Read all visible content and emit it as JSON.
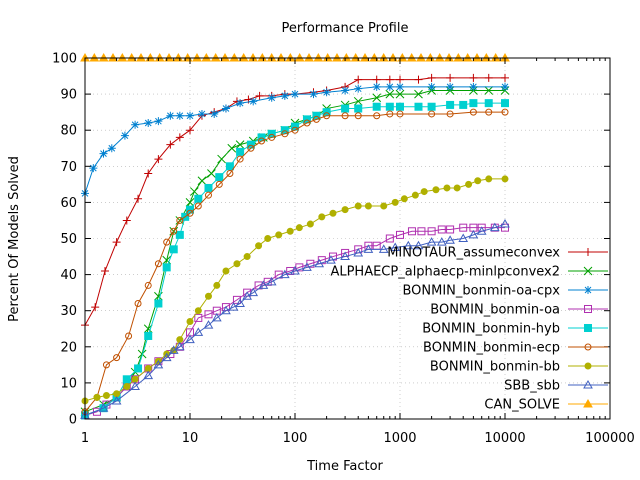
{
  "chart_data": {
    "type": "line",
    "title": "Performance Profile",
    "xlabel": "Time Factor",
    "ylabel": "Percent Of Models Solved",
    "x_scale": "log",
    "xlim": [
      1,
      100000
    ],
    "ylim": [
      0,
      100
    ],
    "x_ticks": [
      1,
      10,
      100,
      1000,
      10000,
      100000
    ],
    "x_tick_labels": [
      "1",
      "10",
      "100",
      "1000",
      "10000",
      "100000"
    ],
    "y_ticks": [
      0,
      10,
      20,
      30,
      40,
      50,
      60,
      70,
      80,
      90,
      100
    ],
    "y_tick_labels": [
      "0",
      "10",
      "20",
      "30",
      "40",
      "50",
      "60",
      "70",
      "80",
      "90",
      "100"
    ],
    "grid": true,
    "legend_position": "right",
    "series": [
      {
        "name": "MINOTAUR_assumeconvex",
        "color": "#c00000",
        "marker": "plus",
        "points": [
          [
            1,
            26
          ],
          [
            1.25,
            31
          ],
          [
            1.55,
            41
          ],
          [
            2,
            49
          ],
          [
            2.5,
            55
          ],
          [
            3.2,
            61
          ],
          [
            4,
            68
          ],
          [
            5,
            72
          ],
          [
            6.5,
            76
          ],
          [
            8,
            78
          ],
          [
            10,
            80
          ],
          [
            13,
            84
          ],
          [
            17,
            85
          ],
          [
            22,
            86
          ],
          [
            28,
            88
          ],
          [
            36,
            88.5
          ],
          [
            46,
            89.5
          ],
          [
            60,
            89.5
          ],
          [
            80,
            90
          ],
          [
            100,
            90
          ],
          [
            150,
            90.5
          ],
          [
            200,
            91
          ],
          [
            300,
            92
          ],
          [
            400,
            94
          ],
          [
            600,
            94
          ],
          [
            800,
            94
          ],
          [
            1000,
            94
          ],
          [
            1500,
            94
          ],
          [
            2000,
            94.5
          ],
          [
            3000,
            94.5
          ],
          [
            5000,
            94.5
          ],
          [
            7000,
            94.5
          ],
          [
            10000,
            94.5
          ]
        ]
      },
      {
        "name": "ALPHAECP_alphaecp-minlpconvex2",
        "color": "#00a000",
        "marker": "x",
        "points": [
          [
            1,
            2
          ],
          [
            1.5,
            4
          ],
          [
            2,
            6
          ],
          [
            2.5,
            9
          ],
          [
            3,
            13
          ],
          [
            3.5,
            18
          ],
          [
            4,
            25
          ],
          [
            5,
            34
          ],
          [
            6,
            44
          ],
          [
            7,
            52
          ],
          [
            8,
            55
          ],
          [
            10,
            60
          ],
          [
            11,
            63
          ],
          [
            13,
            66
          ],
          [
            16,
            68
          ],
          [
            20,
            72
          ],
          [
            25,
            75
          ],
          [
            30,
            76
          ],
          [
            40,
            77
          ],
          [
            50,
            78
          ],
          [
            60,
            79
          ],
          [
            80,
            80
          ],
          [
            100,
            82
          ],
          [
            130,
            83
          ],
          [
            160,
            84
          ],
          [
            200,
            86
          ],
          [
            300,
            87
          ],
          [
            400,
            88
          ],
          [
            600,
            89
          ],
          [
            800,
            90
          ],
          [
            1000,
            90
          ],
          [
            1500,
            90
          ],
          [
            2000,
            91
          ],
          [
            3000,
            91
          ],
          [
            5000,
            91
          ],
          [
            7000,
            91
          ],
          [
            10000,
            91
          ]
        ]
      },
      {
        "name": "BONMIN_bonmin-oa-cpx",
        "color": "#0080d0",
        "marker": "star",
        "points": [
          [
            1,
            62.5
          ],
          [
            1.2,
            69.5
          ],
          [
            1.5,
            73.5
          ],
          [
            1.8,
            75
          ],
          [
            2.4,
            78.5
          ],
          [
            3,
            81.5
          ],
          [
            4,
            82
          ],
          [
            5,
            82.5
          ],
          [
            6.5,
            84
          ],
          [
            8,
            84
          ],
          [
            10,
            84
          ],
          [
            13,
            84.5
          ],
          [
            17,
            84.5
          ],
          [
            22,
            86
          ],
          [
            30,
            87.5
          ],
          [
            40,
            88
          ],
          [
            60,
            89
          ],
          [
            80,
            89.5
          ],
          [
            100,
            90
          ],
          [
            150,
            90
          ],
          [
            200,
            90.5
          ],
          [
            300,
            91
          ],
          [
            400,
            91.5
          ],
          [
            600,
            92
          ],
          [
            800,
            92
          ],
          [
            1000,
            92
          ],
          [
            2000,
            92
          ],
          [
            3000,
            92
          ],
          [
            5000,
            92
          ],
          [
            10000,
            92
          ]
        ]
      },
      {
        "name": "BONMIN_bonmin-oa",
        "color": "#b030b0",
        "marker": "square",
        "points": [
          [
            1,
            1
          ],
          [
            1.3,
            2
          ],
          [
            1.6,
            4
          ],
          [
            2,
            6
          ],
          [
            2.5,
            9
          ],
          [
            3,
            11
          ],
          [
            4,
            14
          ],
          [
            5,
            16
          ],
          [
            6.5,
            18
          ],
          [
            8,
            20
          ],
          [
            10,
            24
          ],
          [
            12,
            28
          ],
          [
            15,
            29
          ],
          [
            18,
            30
          ],
          [
            22,
            31
          ],
          [
            28,
            33
          ],
          [
            35,
            35
          ],
          [
            45,
            37
          ],
          [
            55,
            38
          ],
          [
            70,
            40
          ],
          [
            90,
            41
          ],
          [
            110,
            42
          ],
          [
            140,
            43
          ],
          [
            180,
            44
          ],
          [
            230,
            45
          ],
          [
            300,
            46
          ],
          [
            400,
            47
          ],
          [
            500,
            48
          ],
          [
            600,
            48
          ],
          [
            800,
            50
          ],
          [
            1000,
            51
          ],
          [
            1300,
            52
          ],
          [
            1600,
            52
          ],
          [
            2000,
            52
          ],
          [
            2500,
            52.5
          ],
          [
            3000,
            52.5
          ],
          [
            4000,
            53
          ],
          [
            5000,
            53
          ],
          [
            6000,
            53
          ],
          [
            8000,
            53
          ],
          [
            10000,
            53
          ]
        ]
      },
      {
        "name": "BONMIN_bonmin-hyb",
        "color": "#00d0d0",
        "marker": "filled-square",
        "points": [
          [
            1,
            1
          ],
          [
            1.5,
            3
          ],
          [
            2,
            6
          ],
          [
            2.5,
            11
          ],
          [
            3.2,
            14
          ],
          [
            4,
            23
          ],
          [
            5,
            32
          ],
          [
            6,
            42
          ],
          [
            7,
            47
          ],
          [
            8,
            51
          ],
          [
            9,
            56
          ],
          [
            10,
            58
          ],
          [
            12,
            61
          ],
          [
            15,
            64
          ],
          [
            19,
            67
          ],
          [
            24,
            70
          ],
          [
            30,
            74
          ],
          [
            38,
            76
          ],
          [
            48,
            78
          ],
          [
            60,
            79
          ],
          [
            80,
            80
          ],
          [
            100,
            81
          ],
          [
            130,
            83
          ],
          [
            160,
            84
          ],
          [
            200,
            85
          ],
          [
            300,
            86
          ],
          [
            400,
            86
          ],
          [
            600,
            86.5
          ],
          [
            800,
            86.5
          ],
          [
            1000,
            86.5
          ],
          [
            1500,
            86.5
          ],
          [
            2000,
            86.5
          ],
          [
            3000,
            87
          ],
          [
            4000,
            87
          ],
          [
            5000,
            87.5
          ],
          [
            7000,
            87.5
          ],
          [
            10000,
            87.5
          ]
        ]
      },
      {
        "name": "BONMIN_bonmin-ecp",
        "color": "#c05000",
        "marker": "circle",
        "points": [
          [
            1,
            2
          ],
          [
            1.3,
            6
          ],
          [
            1.6,
            15
          ],
          [
            2,
            17
          ],
          [
            2.6,
            23
          ],
          [
            3.2,
            32
          ],
          [
            4,
            37
          ],
          [
            5,
            43
          ],
          [
            6,
            49
          ],
          [
            7,
            52
          ],
          [
            8,
            55
          ],
          [
            10,
            57
          ],
          [
            12,
            59
          ],
          [
            15,
            62
          ],
          [
            19,
            65
          ],
          [
            24,
            68
          ],
          [
            30,
            72
          ],
          [
            38,
            75
          ],
          [
            48,
            77
          ],
          [
            60,
            78
          ],
          [
            80,
            79
          ],
          [
            100,
            80
          ],
          [
            130,
            82
          ],
          [
            160,
            83
          ],
          [
            200,
            84
          ],
          [
            300,
            84
          ],
          [
            400,
            84
          ],
          [
            600,
            84
          ],
          [
            800,
            84.5
          ],
          [
            1000,
            84.5
          ],
          [
            2000,
            84.5
          ],
          [
            3000,
            84.5
          ],
          [
            5000,
            85
          ],
          [
            7000,
            85
          ],
          [
            10000,
            85
          ]
        ]
      },
      {
        "name": "BONMIN_bonmin-bb",
        "color": "#b0b000",
        "marker": "filled-circle",
        "points": [
          [
            1,
            5
          ],
          [
            1.3,
            6
          ],
          [
            1.6,
            6.5
          ],
          [
            2,
            7
          ],
          [
            2.5,
            9
          ],
          [
            3,
            11
          ],
          [
            4,
            14
          ],
          [
            5,
            16
          ],
          [
            6,
            18
          ],
          [
            7,
            19
          ],
          [
            8,
            22
          ],
          [
            10,
            27
          ],
          [
            12,
            30
          ],
          [
            15,
            34
          ],
          [
            18,
            37
          ],
          [
            22,
            41
          ],
          [
            28,
            43
          ],
          [
            35,
            45
          ],
          [
            45,
            48
          ],
          [
            55,
            50
          ],
          [
            70,
            51
          ],
          [
            90,
            52
          ],
          [
            110,
            53
          ],
          [
            140,
            54
          ],
          [
            180,
            56
          ],
          [
            230,
            57
          ],
          [
            300,
            58
          ],
          [
            400,
            59
          ],
          [
            500,
            59
          ],
          [
            700,
            59
          ],
          [
            900,
            60
          ],
          [
            1100,
            61
          ],
          [
            1400,
            62
          ],
          [
            1700,
            63
          ],
          [
            2200,
            63.5
          ],
          [
            2800,
            64
          ],
          [
            3500,
            64
          ],
          [
            4500,
            65
          ],
          [
            5500,
            66
          ],
          [
            7000,
            66.5
          ],
          [
            10000,
            66.5
          ]
        ]
      },
      {
        "name": "SBB_sbb",
        "color": "#4060c0",
        "marker": "triangle",
        "points": [
          [
            1,
            1
          ],
          [
            1.5,
            3
          ],
          [
            2,
            5
          ],
          [
            3,
            9
          ],
          [
            4,
            12
          ],
          [
            5,
            15
          ],
          [
            6,
            17
          ],
          [
            7,
            19
          ],
          [
            8,
            20
          ],
          [
            10,
            22
          ],
          [
            12,
            24
          ],
          [
            15,
            26
          ],
          [
            18,
            28
          ],
          [
            22,
            30
          ],
          [
            26,
            31
          ],
          [
            30,
            32
          ],
          [
            35,
            34
          ],
          [
            40,
            35
          ],
          [
            50,
            37
          ],
          [
            60,
            38
          ],
          [
            80,
            40
          ],
          [
            100,
            41
          ],
          [
            130,
            42
          ],
          [
            170,
            43
          ],
          [
            220,
            44
          ],
          [
            300,
            45
          ],
          [
            400,
            46
          ],
          [
            500,
            47
          ],
          [
            700,
            47
          ],
          [
            900,
            47.5
          ],
          [
            1200,
            48
          ],
          [
            1500,
            48
          ],
          [
            2000,
            49
          ],
          [
            2500,
            49
          ],
          [
            3000,
            49.5
          ],
          [
            4000,
            50
          ],
          [
            5000,
            51
          ],
          [
            6000,
            52
          ],
          [
            8000,
            53
          ],
          [
            10000,
            54
          ]
        ]
      },
      {
        "name": "CAN_SOLVE",
        "color": "#ffaa00",
        "marker": "filled-triangle",
        "points": [
          [
            1,
            100
          ],
          [
            10,
            100
          ],
          [
            100,
            100
          ],
          [
            1000,
            100
          ],
          [
            10000,
            100
          ]
        ]
      }
    ]
  }
}
